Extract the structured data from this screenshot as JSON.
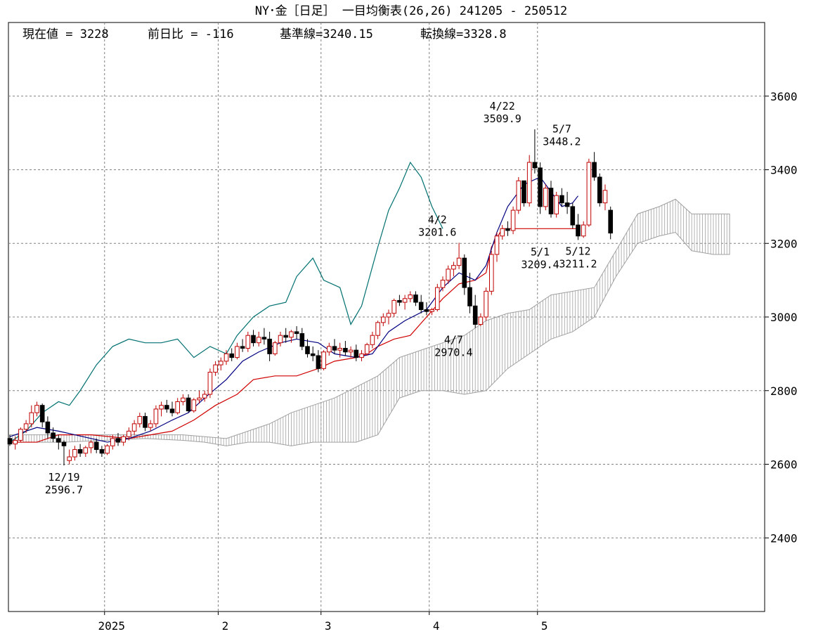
{
  "chart_data": {
    "type": "candlestick-ichimoku",
    "title": "NY･金［日足］ 一目均衡表(26,26)  241205 - 250512",
    "info": {
      "current_label": "現在値 = 3228",
      "change_label": "前日比 = -116",
      "kijun_label": "基準線=3240.15",
      "tenkan_label": "転換線=3328.8"
    },
    "ylim": [
      2200,
      3800
    ],
    "yticks": [
      2400,
      2600,
      2800,
      3000,
      3200,
      3400,
      3600
    ],
    "xlim": [
      0,
      135
    ],
    "month_labels": [
      {
        "x": 17.5,
        "label": "2025"
      },
      {
        "x": 38.5,
        "label": "2"
      },
      {
        "x": 57.5,
        "label": "3"
      },
      {
        "x": 77.5,
        "label": "4"
      },
      {
        "x": 97.5,
        "label": "5"
      }
    ],
    "annotations": [
      {
        "x": 10,
        "y": 2596.7,
        "date": "12/19",
        "value": "2596.7",
        "pos": "below"
      },
      {
        "x": 79,
        "y": 3201.6,
        "date": "4/2",
        "value": "3201.6",
        "pos": "above"
      },
      {
        "x": 82,
        "y": 2970.4,
        "date": "4/7",
        "value": "2970.4",
        "pos": "below"
      },
      {
        "x": 91,
        "y": 3509.9,
        "date": "4/22",
        "value": "3509.9",
        "pos": "above"
      },
      {
        "x": 98,
        "y": 3209.4,
        "date": "5/1",
        "value": "3209.4",
        "pos": "below"
      },
      {
        "x": 102,
        "y": 3448.2,
        "date": "5/7",
        "value": "3448.2",
        "pos": "above"
      },
      {
        "x": 105,
        "y": 3211.2,
        "date": "5/12",
        "value": "3211.2",
        "pos": "below"
      }
    ],
    "colors": {
      "bull": "#c00000",
      "bear": "#000000",
      "tenkan": "#000080",
      "kijun": "#d00000",
      "chikou": "#007070",
      "cloud": "#a0a0a0",
      "grid": "#808080"
    },
    "candles": [
      [
        2670,
        2680,
        2650,
        2655
      ],
      [
        2655,
        2675,
        2640,
        2665
      ],
      [
        2665,
        2700,
        2660,
        2695
      ],
      [
        2695,
        2720,
        2685,
        2710
      ],
      [
        2710,
        2760,
        2700,
        2740
      ],
      [
        2740,
        2770,
        2730,
        2760
      ],
      [
        2760,
        2765,
        2700,
        2715
      ],
      [
        2715,
        2730,
        2670,
        2685
      ],
      [
        2685,
        2700,
        2660,
        2670
      ],
      [
        2670,
        2680,
        2640,
        2660
      ],
      [
        2660,
        2665,
        2596.7,
        2650
      ],
      [
        2610,
        2640,
        2600,
        2620
      ],
      [
        2620,
        2650,
        2610,
        2640
      ],
      [
        2640,
        2655,
        2620,
        2630
      ],
      [
        2630,
        2650,
        2620,
        2645
      ],
      [
        2645,
        2665,
        2630,
        2660
      ],
      [
        2660,
        2670,
        2630,
        2640
      ],
      [
        2640,
        2650,
        2620,
        2630
      ],
      [
        2630,
        2655,
        2625,
        2650
      ],
      [
        2650,
        2680,
        2640,
        2670
      ],
      [
        2670,
        2685,
        2650,
        2660
      ],
      [
        2660,
        2680,
        2650,
        2675
      ],
      [
        2675,
        2700,
        2665,
        2690
      ],
      [
        2690,
        2720,
        2680,
        2710
      ],
      [
        2710,
        2740,
        2700,
        2730
      ],
      [
        2730,
        2740,
        2690,
        2700
      ],
      [
        2700,
        2720,
        2690,
        2710
      ],
      [
        2710,
        2760,
        2700,
        2750
      ],
      [
        2750,
        2770,
        2730,
        2760
      ],
      [
        2760,
        2775,
        2740,
        2750
      ],
      [
        2750,
        2770,
        2730,
        2740
      ],
      [
        2740,
        2780,
        2735,
        2770
      ],
      [
        2770,
        2790,
        2760,
        2780
      ],
      [
        2780,
        2790,
        2740,
        2745
      ],
      [
        2745,
        2780,
        2740,
        2775
      ],
      [
        2775,
        2800,
        2765,
        2780
      ],
      [
        2780,
        2800,
        2770,
        2790
      ],
      [
        2790,
        2860,
        2780,
        2850
      ],
      [
        2850,
        2880,
        2840,
        2870
      ],
      [
        2870,
        2890,
        2855,
        2880
      ],
      [
        2880,
        2910,
        2870,
        2900
      ],
      [
        2900,
        2915,
        2880,
        2890
      ],
      [
        2890,
        2930,
        2885,
        2920
      ],
      [
        2920,
        2940,
        2905,
        2915
      ],
      [
        2915,
        2960,
        2905,
        2950
      ],
      [
        2950,
        2965,
        2920,
        2930
      ],
      [
        2930,
        2960,
        2920,
        2945
      ],
      [
        2945,
        2970,
        2925,
        2940
      ],
      [
        2940,
        2960,
        2880,
        2900
      ],
      [
        2900,
        2935,
        2895,
        2930
      ],
      [
        2930,
        2960,
        2920,
        2950
      ],
      [
        2950,
        2970,
        2930,
        2945
      ],
      [
        2945,
        2965,
        2930,
        2960
      ],
      [
        2960,
        2975,
        2940,
        2955
      ],
      [
        2955,
        2970,
        2910,
        2920
      ],
      [
        2920,
        2940,
        2890,
        2900
      ],
      [
        2900,
        2920,
        2880,
        2895
      ],
      [
        2895,
        2910,
        2850,
        2860
      ],
      [
        2860,
        2910,
        2855,
        2905
      ],
      [
        2905,
        2930,
        2895,
        2920
      ],
      [
        2920,
        2940,
        2900,
        2910
      ],
      [
        2910,
        2930,
        2890,
        2915
      ],
      [
        2915,
        2935,
        2895,
        2905
      ],
      [
        2905,
        2920,
        2890,
        2910
      ],
      [
        2910,
        2925,
        2880,
        2890
      ],
      [
        2890,
        2910,
        2880,
        2900
      ],
      [
        2900,
        2930,
        2895,
        2925
      ],
      [
        2925,
        2960,
        2915,
        2950
      ],
      [
        2950,
        2990,
        2940,
        2985
      ],
      [
        2985,
        3010,
        2975,
        3000
      ],
      [
        3000,
        3020,
        2980,
        3010
      ],
      [
        3010,
        3050,
        3000,
        3045
      ],
      [
        3045,
        3060,
        3030,
        3040
      ],
      [
        3040,
        3060,
        3020,
        3050
      ],
      [
        3050,
        3070,
        3040,
        3060
      ],
      [
        3060,
        3070,
        3030,
        3040
      ],
      [
        3040,
        3060,
        3010,
        3020
      ],
      [
        3020,
        3040,
        3005,
        3015
      ],
      [
        3015,
        3025,
        3005,
        3020
      ],
      [
        3020,
        3090,
        3015,
        3080
      ],
      [
        3080,
        3110,
        3070,
        3100
      ],
      [
        3100,
        3140,
        3090,
        3130
      ],
      [
        3130,
        3150,
        3110,
        3140
      ],
      [
        3140,
        3201.6,
        3130,
        3160
      ],
      [
        3160,
        3170,
        3060,
        3080
      ],
      [
        3080,
        3120,
        3010,
        3030
      ],
      [
        3030,
        3060,
        2970.4,
        2980
      ],
      [
        2980,
        3010,
        2975,
        3000
      ],
      [
        3000,
        3080,
        2990,
        3070
      ],
      [
        3070,
        3180,
        3060,
        3170
      ],
      [
        3170,
        3230,
        3150,
        3220
      ],
      [
        3220,
        3250,
        3210,
        3240
      ],
      [
        3240,
        3260,
        3220,
        3235
      ],
      [
        3235,
        3300,
        3225,
        3290
      ],
      [
        3290,
        3380,
        3280,
        3370
      ],
      [
        3370,
        3360,
        3300,
        3310
      ],
      [
        3310,
        3440,
        3300,
        3420
      ],
      [
        3420,
        3509.9,
        3390,
        3405
      ],
      [
        3405,
        3420,
        3280,
        3300
      ],
      [
        3300,
        3360,
        3290,
        3350
      ],
      [
        3350,
        3370,
        3270,
        3280
      ],
      [
        3280,
        3340,
        3270,
        3330
      ],
      [
        3330,
        3350,
        3300,
        3310
      ],
      [
        3310,
        3340,
        3280,
        3300
      ],
      [
        3300,
        3310,
        3240,
        3250
      ],
      [
        3250,
        3280,
        3209.4,
        3220
      ],
      [
        3220,
        3260,
        3215,
        3250
      ],
      [
        3250,
        3430,
        3245,
        3420
      ],
      [
        3420,
        3448.2,
        3370,
        3380
      ],
      [
        3380,
        3390,
        3300,
        3310
      ],
      [
        3310,
        3360,
        3290,
        3344
      ],
      [
        3290,
        3300,
        3211.2,
        3228
      ]
    ],
    "tenkan": [
      [
        0,
        2675
      ],
      [
        5,
        2700
      ],
      [
        9,
        2690
      ],
      [
        12,
        2680
      ],
      [
        18,
        2660
      ],
      [
        22,
        2670
      ],
      [
        26,
        2690
      ],
      [
        30,
        2720
      ],
      [
        33,
        2740
      ],
      [
        36,
        2780
      ],
      [
        40,
        2830
      ],
      [
        43,
        2880
      ],
      [
        46,
        2905
      ],
      [
        50,
        2930
      ],
      [
        53,
        2940
      ],
      [
        57,
        2930
      ],
      [
        60,
        2900
      ],
      [
        64,
        2890
      ],
      [
        67,
        2900
      ],
      [
        70,
        2960
      ],
      [
        73,
        2990
      ],
      [
        77,
        3020
      ],
      [
        80,
        3080
      ],
      [
        83,
        3120
      ],
      [
        86,
        3100
      ],
      [
        88,
        3140
      ],
      [
        90,
        3230
      ],
      [
        92,
        3300
      ],
      [
        95,
        3360
      ],
      [
        98,
        3380
      ],
      [
        100,
        3340
      ],
      [
        102,
        3300
      ],
      [
        104,
        3310
      ],
      [
        105,
        3329
      ]
    ],
    "kijun": [
      [
        0,
        2660
      ],
      [
        5,
        2660
      ],
      [
        9,
        2680
      ],
      [
        15,
        2680
      ],
      [
        22,
        2670
      ],
      [
        26,
        2680
      ],
      [
        30,
        2690
      ],
      [
        34,
        2720
      ],
      [
        38,
        2760
      ],
      [
        42,
        2790
      ],
      [
        45,
        2830
      ],
      [
        49,
        2840
      ],
      [
        53,
        2840
      ],
      [
        57,
        2860
      ],
      [
        60,
        2880
      ],
      [
        64,
        2890
      ],
      [
        66,
        2900
      ],
      [
        68,
        2920
      ],
      [
        71,
        2940
      ],
      [
        74,
        2950
      ],
      [
        77,
        3000
      ],
      [
        80,
        3050
      ],
      [
        83,
        3090
      ],
      [
        86,
        3100
      ],
      [
        88,
        3120
      ],
      [
        89,
        3190
      ],
      [
        91,
        3240
      ],
      [
        105,
        3240
      ]
    ],
    "chikou": [
      [
        0,
        2660
      ],
      [
        3,
        2690
      ],
      [
        6,
        2740
      ],
      [
        9,
        2770
      ],
      [
        11,
        2760
      ],
      [
        13,
        2800
      ],
      [
        16,
        2870
      ],
      [
        19,
        2920
      ],
      [
        22,
        2940
      ],
      [
        25,
        2930
      ],
      [
        28,
        2930
      ],
      [
        31,
        2940
      ],
      [
        34,
        2890
      ],
      [
        37,
        2920
      ],
      [
        40,
        2900
      ],
      [
        42,
        2950
      ],
      [
        45,
        3000
      ],
      [
        48,
        3030
      ],
      [
        51,
        3040
      ],
      [
        53,
        3110
      ],
      [
        56,
        3160
      ],
      [
        58,
        3100
      ],
      [
        61,
        3080
      ],
      [
        63,
        2980
      ],
      [
        65,
        3030
      ],
      [
        68,
        3190
      ],
      [
        70,
        3290
      ],
      [
        72,
        3350
      ],
      [
        74,
        3420
      ],
      [
        76,
        3380
      ],
      [
        78,
        3300
      ],
      [
        80,
        3240
      ]
    ],
    "cloud": [
      [
        0,
        2660,
        2680
      ],
      [
        10,
        2660,
        2680
      ],
      [
        25,
        2670,
        2680
      ],
      [
        32,
        2665,
        2680
      ],
      [
        36,
        2660,
        2675
      ],
      [
        40,
        2650,
        2670
      ],
      [
        44,
        2660,
        2690
      ],
      [
        48,
        2660,
        2710
      ],
      [
        52,
        2650,
        2740
      ],
      [
        56,
        2660,
        2760
      ],
      [
        60,
        2660,
        2780
      ],
      [
        64,
        2660,
        2810
      ],
      [
        68,
        2680,
        2840
      ],
      [
        72,
        2780,
        2890
      ],
      [
        76,
        2800,
        2910
      ],
      [
        80,
        2800,
        2930
      ],
      [
        84,
        2790,
        2950
      ],
      [
        88,
        2800,
        2990
      ],
      [
        92,
        2860,
        3010
      ],
      [
        96,
        2900,
        3020
      ],
      [
        100,
        2940,
        3060
      ],
      [
        104,
        2960,
        3070
      ],
      [
        108,
        3000,
        3080
      ],
      [
        112,
        3110,
        3180
      ],
      [
        116,
        3200,
        3280
      ],
      [
        120,
        3220,
        3300
      ],
      [
        123,
        3230,
        3320
      ],
      [
        126,
        3180,
        3280
      ],
      [
        130,
        3170,
        3280
      ],
      [
        133,
        3170,
        3280
      ]
    ]
  }
}
